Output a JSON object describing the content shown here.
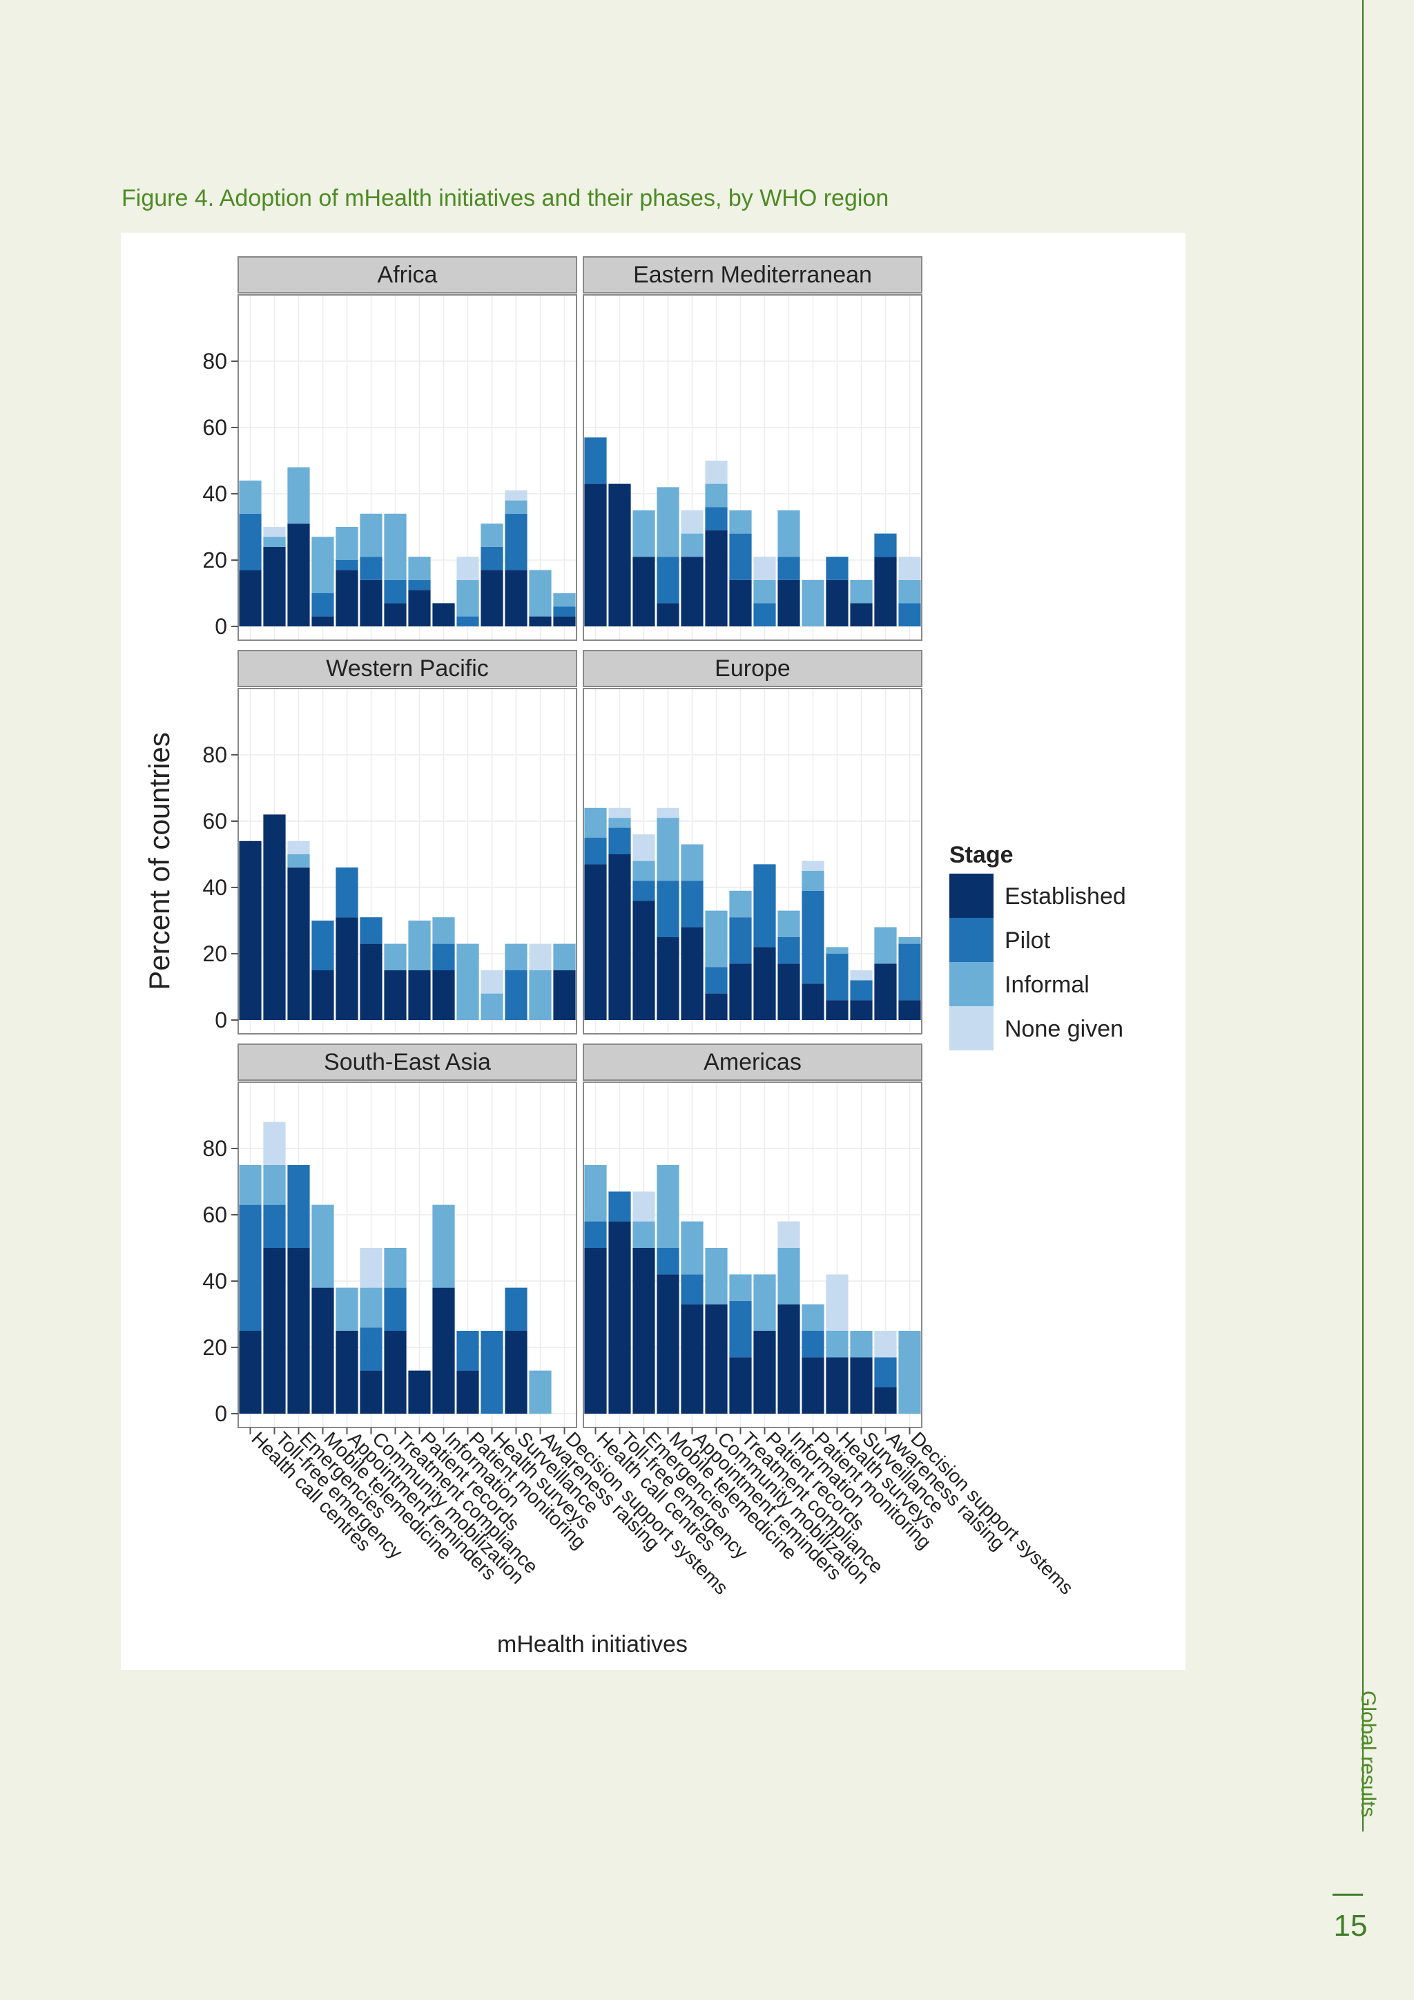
{
  "page": {
    "figure_title": "Figure 4. Adoption of mHealth initiatives and their phases, by WHO region",
    "section_label": "Global results",
    "page_number": "15"
  },
  "colors": {
    "established": "#08306b",
    "pilot": "#2171b5",
    "informal": "#6baed6",
    "none_given": "#c6dbef",
    "strip_bg": "#cccccc",
    "panel_border": "#888888",
    "accent_green": "#4e8a25"
  },
  "chart_data": {
    "type": "bar",
    "stacked": true,
    "facet_layout": "3 rows x 2 columns",
    "xlabel": "mHealth initiatives",
    "ylabel": "Percent of countries",
    "ylim": [
      0,
      100
    ],
    "yticks": [
      0,
      20,
      40,
      60,
      80
    ],
    "grid": true,
    "legend": {
      "title": "Stage",
      "position": "right",
      "entries": [
        "Established",
        "Pilot",
        "Informal",
        "None given"
      ]
    },
    "categories": [
      "Health call centres",
      "Toll-free emergency",
      "Emergencies",
      "Mobile telemedicine",
      "Appointment reminders",
      "Community mobilization",
      "Treatment compliance",
      "Patient records",
      "Information",
      "Patient monitoring",
      "Health surveys",
      "Surveillance",
      "Awareness raising",
      "Decision support systems"
    ],
    "facets": [
      {
        "name": "Africa",
        "series": [
          {
            "name": "Established",
            "values": [
              17,
              24,
              31,
              3,
              17,
              14,
              7,
              11,
              7,
              0,
              17,
              17,
              3,
              3
            ]
          },
          {
            "name": "Pilot",
            "values": [
              17,
              0,
              0,
              7,
              3,
              7,
              7,
              3,
              0,
              3,
              7,
              17,
              0,
              3
            ]
          },
          {
            "name": "Informal",
            "values": [
              10,
              3,
              17,
              17,
              10,
              13,
              20,
              7,
              0,
              11,
              7,
              4,
              14,
              4
            ]
          },
          {
            "name": "None given",
            "values": [
              0,
              3,
              0,
              0,
              0,
              0,
              0,
              0,
              0,
              7,
              0,
              3,
              0,
              0
            ]
          }
        ]
      },
      {
        "name": "Eastern Mediterranean",
        "series": [
          {
            "name": "Established",
            "values": [
              43,
              43,
              21,
              7,
              21,
              29,
              14,
              0,
              14,
              0,
              14,
              7,
              21,
              0
            ]
          },
          {
            "name": "Pilot",
            "values": [
              14,
              0,
              0,
              14,
              0,
              7,
              14,
              7,
              7,
              0,
              7,
              0,
              7,
              7
            ]
          },
          {
            "name": "Informal",
            "values": [
              0,
              0,
              14,
              21,
              7,
              7,
              7,
              7,
              14,
              14,
              0,
              7,
              0,
              7
            ]
          },
          {
            "name": "None given",
            "values": [
              0,
              0,
              0,
              0,
              7,
              7,
              0,
              7,
              0,
              0,
              0,
              0,
              0,
              7
            ]
          }
        ]
      },
      {
        "name": "Western Pacific",
        "series": [
          {
            "name": "Established",
            "values": [
              54,
              62,
              46,
              15,
              31,
              23,
              15,
              15,
              15,
              0,
              0,
              0,
              0,
              15
            ]
          },
          {
            "name": "Pilot",
            "values": [
              0,
              0,
              0,
              15,
              15,
              8,
              0,
              0,
              8,
              0,
              0,
              15,
              0,
              0
            ]
          },
          {
            "name": "Informal",
            "values": [
              0,
              0,
              4,
              0,
              0,
              0,
              8,
              15,
              8,
              23,
              8,
              8,
              15,
              8
            ]
          },
          {
            "name": "None given",
            "values": [
              0,
              0,
              4,
              0,
              0,
              0,
              0,
              0,
              0,
              0,
              7,
              0,
              8,
              0
            ]
          }
        ]
      },
      {
        "name": "Europe",
        "series": [
          {
            "name": "Established",
            "values": [
              47,
              50,
              36,
              25,
              28,
              8,
              17,
              22,
              17,
              11,
              6,
              6,
              17,
              6
            ]
          },
          {
            "name": "Pilot",
            "values": [
              8,
              8,
              6,
              17,
              14,
              8,
              14,
              25,
              8,
              28,
              14,
              6,
              0,
              17
            ]
          },
          {
            "name": "Informal",
            "values": [
              9,
              3,
              6,
              19,
              11,
              17,
              8,
              0,
              8,
              6,
              2,
              0,
              11,
              2
            ]
          },
          {
            "name": "None given",
            "values": [
              0,
              3,
              8,
              3,
              0,
              0,
              0,
              0,
              0,
              3,
              0,
              3,
              0,
              0
            ]
          }
        ]
      },
      {
        "name": "South-East Asia",
        "series": [
          {
            "name": "Established",
            "values": [
              25,
              50,
              50,
              38,
              25,
              13,
              25,
              13,
              38,
              13,
              0,
              25,
              0,
              0
            ]
          },
          {
            "name": "Pilot",
            "values": [
              38,
              13,
              25,
              0,
              0,
              13,
              13,
              0,
              0,
              12,
              25,
              13,
              0,
              0
            ]
          },
          {
            "name": "Informal",
            "values": [
              12,
              12,
              0,
              25,
              13,
              12,
              12,
              0,
              25,
              0,
              0,
              0,
              13,
              0
            ]
          },
          {
            "name": "None given",
            "values": [
              0,
              13,
              0,
              0,
              0,
              12,
              0,
              0,
              0,
              0,
              0,
              0,
              0,
              0
            ]
          }
        ]
      },
      {
        "name": "Americas",
        "series": [
          {
            "name": "Established",
            "values": [
              50,
              58,
              50,
              42,
              33,
              33,
              17,
              25,
              33,
              17,
              17,
              17,
              8,
              0
            ]
          },
          {
            "name": "Pilot",
            "values": [
              8,
              9,
              0,
              8,
              9,
              0,
              17,
              0,
              0,
              8,
              0,
              0,
              9,
              0
            ]
          },
          {
            "name": "Informal",
            "values": [
              17,
              0,
              8,
              25,
              16,
              17,
              8,
              17,
              17,
              8,
              8,
              8,
              0,
              25
            ]
          },
          {
            "name": "None given",
            "values": [
              0,
              0,
              9,
              0,
              0,
              0,
              0,
              0,
              8,
              0,
              17,
              0,
              8,
              0
            ]
          }
        ]
      }
    ]
  }
}
